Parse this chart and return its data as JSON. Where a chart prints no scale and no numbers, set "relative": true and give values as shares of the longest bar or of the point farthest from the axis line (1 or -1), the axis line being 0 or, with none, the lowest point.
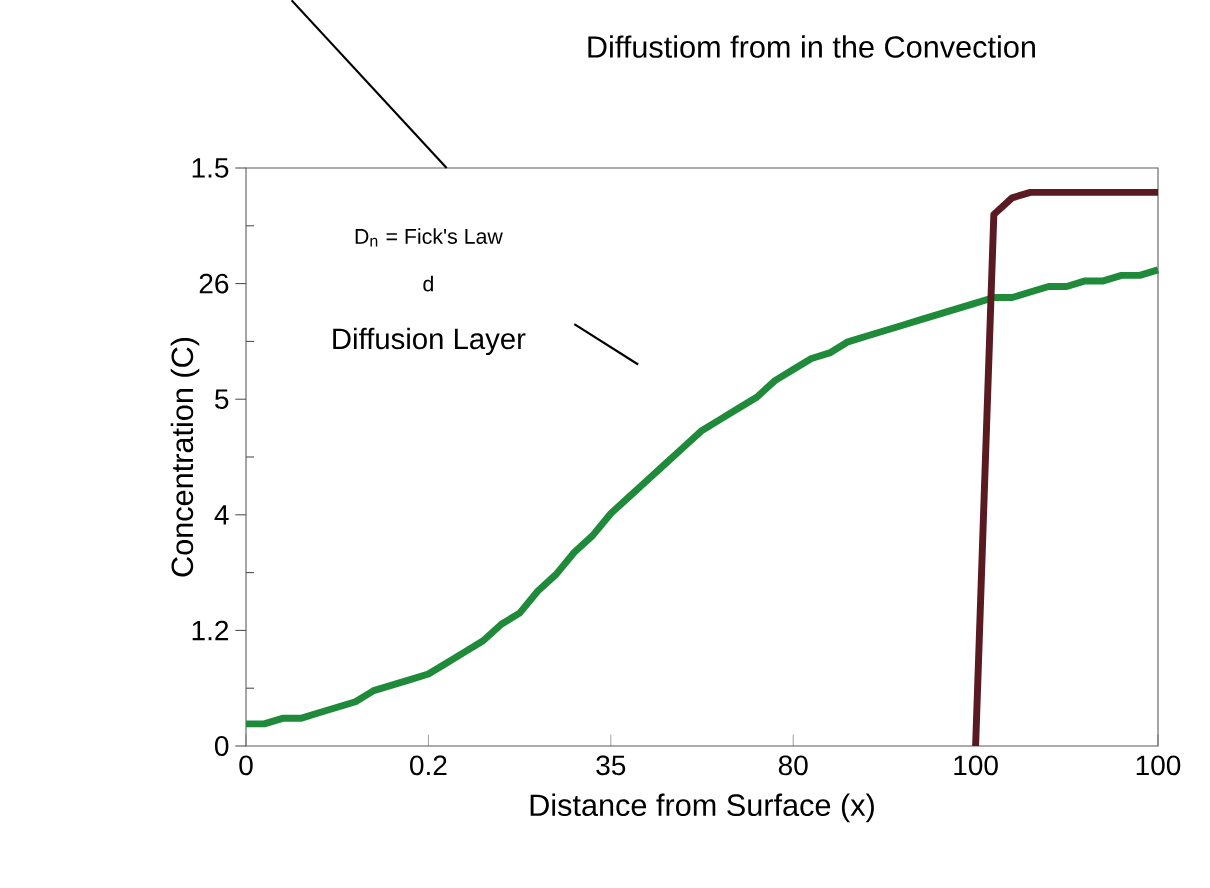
{
  "chart_data": {
    "type": "line",
    "xlabel": "Distance from Surface (x)",
    "ylabel": "Concentration (C)",
    "relative": true,
    "annotations": [
      "Diffustiom from in the Convection",
      "D$_{n}$ = Fick's Law",
      "d",
      "Diffusion Layer",
      "0",
      "1.2",
      "4",
      "5",
      "26",
      "1.5"
    ],
    "categories": [
      "0",
      null,
      null,
      null,
      null,
      null,
      null,
      null,
      null,
      null,
      "0.2",
      null,
      null,
      null,
      null,
      null,
      null,
      null,
      null,
      null,
      "35",
      null,
      null,
      null,
      null,
      null,
      null,
      null,
      null,
      null,
      "80",
      null,
      null,
      null,
      null,
      null,
      null,
      null,
      null,
      null,
      "100",
      null,
      null,
      null,
      null,
      null,
      null,
      null,
      null,
      null,
      "100"
    ],
    "series": [
      {
        "color": "#1f8a3a",
        "values": [
          0.04,
          0.04,
          0.05,
          0.05,
          0.06,
          0.07,
          0.08,
          0.1,
          0.11,
          0.12,
          0.13,
          0.15,
          0.17,
          0.19,
          0.22,
          0.24,
          0.28,
          0.31,
          0.35,
          0.38,
          0.42,
          0.45,
          0.48,
          0.51,
          0.54,
          0.57,
          0.59,
          0.61,
          0.63,
          0.66,
          0.68,
          0.7,
          0.71,
          0.73,
          0.74,
          0.75,
          0.76,
          0.77,
          0.78,
          0.79,
          0.8,
          0.81,
          0.81,
          0.82,
          0.83,
          0.83,
          0.84,
          0.84,
          0.85,
          0.85,
          0.86
        ]
      },
      {
        "color": "#5a1a22",
        "values": [
          null,
          null,
          null,
          null,
          null,
          null,
          null,
          null,
          null,
          null,
          null,
          null,
          null,
          null,
          null,
          null,
          null,
          null,
          null,
          null,
          null,
          null,
          null,
          null,
          null,
          null,
          null,
          null,
          null,
          null,
          null,
          null,
          null,
          null,
          null,
          null,
          null,
          null,
          null,
          null,
          0,
          0.96,
          0.99,
          1,
          1,
          1,
          1,
          1,
          1,
          1,
          1
        ]
      }
    ]
  }
}
